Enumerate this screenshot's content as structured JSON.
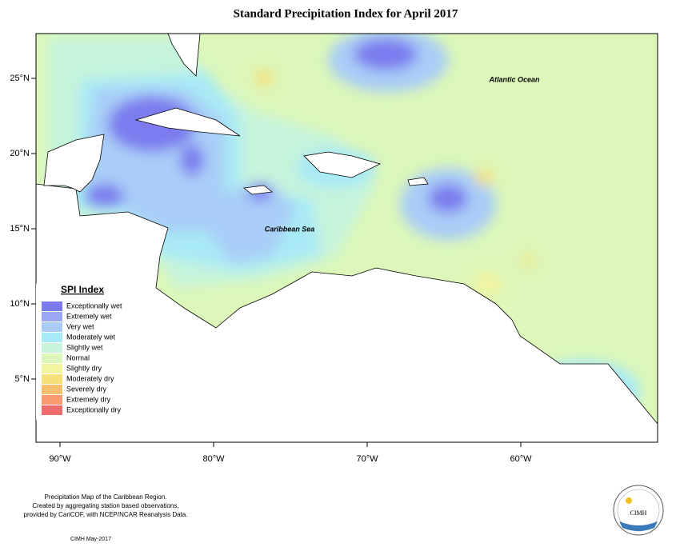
{
  "header": {
    "title": "Standard Precipitation Index for April 2017"
  },
  "map": {
    "labels": {
      "atlantic": "Atlantic Ocean",
      "caribbean": "Caribbean Sea"
    },
    "lon_ticks": [
      "90°W",
      "80°W",
      "70°W",
      "60°W"
    ],
    "lat_ticks": [
      "25°N",
      "20°N",
      "15°N",
      "10°N",
      "5°N"
    ]
  },
  "legend": {
    "title": "SPI Index",
    "entries": [
      {
        "label": "Exceptionally wet",
        "color": "#7b7bee"
      },
      {
        "label": "Extremely wet",
        "color": "#9aa8f2"
      },
      {
        "label": "Very wet",
        "color": "#a9cdf7"
      },
      {
        "label": "Moderately wet",
        "color": "#a8eaf6"
      },
      {
        "label": "Slightly wet",
        "color": "#c6f4dc"
      },
      {
        "label": "Normal",
        "color": "#dcf7b9"
      },
      {
        "label": "Slightly dry",
        "color": "#f2f4a0"
      },
      {
        "label": "Moderately dry",
        "color": "#f6e07a"
      },
      {
        "label": "Severely dry",
        "color": "#f7c06f"
      },
      {
        "label": "Extremely dry",
        "color": "#f79a6f"
      },
      {
        "label": "Exceptionally dry",
        "color": "#f06b6b"
      }
    ]
  },
  "footer": {
    "lines": [
      "Precipitation Map of the Caribbean Region.",
      "Created by aggregating station based observations,",
      "provided by CariCOF, with NCEP/NCAR Reanalysis Data."
    ],
    "credit": "CIMH May-2017",
    "logo": "CIMH"
  }
}
